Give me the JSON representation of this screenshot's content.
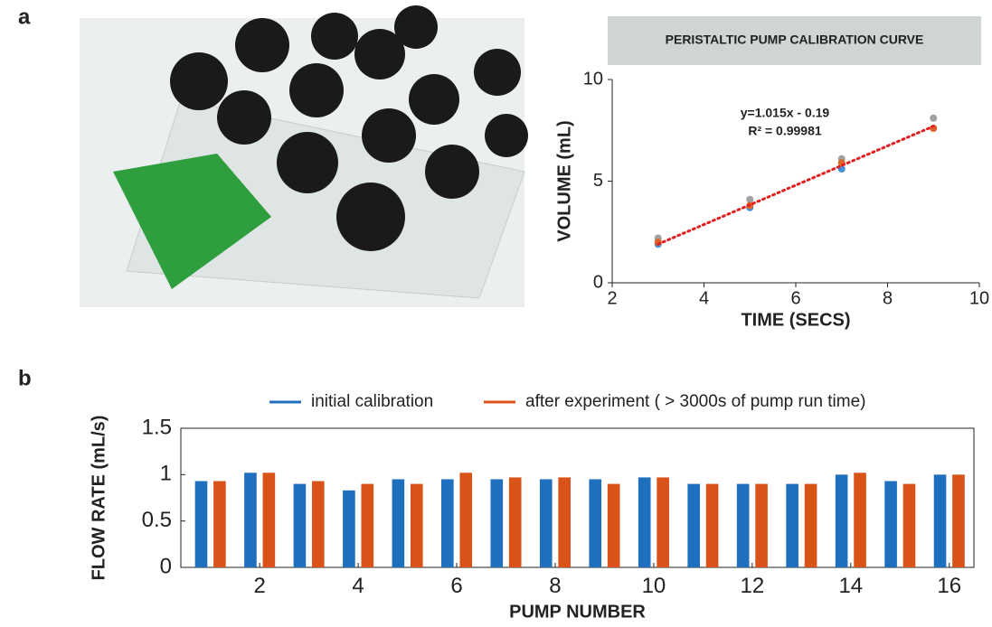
{
  "panel_labels": [
    "a",
    "b"
  ],
  "chart_data": [
    {
      "type": "scatter",
      "title": "PERISTALTIC PUMP CALIBRATION CURVE",
      "x_label": "TIME  (SECS)",
      "y_label": "VOLUME (mL)",
      "annotations": [
        "y=1.015x - 0.19",
        "R² = 0.99981"
      ],
      "xlim": [
        2,
        10
      ],
      "xticks": [
        2,
        4,
        6,
        8,
        10
      ],
      "ylim": [
        0,
        10
      ],
      "yticks": [
        0,
        5,
        10
      ],
      "series": [
        {
          "color": "#a0a0a0",
          "x": [
            3,
            5,
            7,
            9
          ],
          "values": [
            2.2,
            4.1,
            6.1,
            8.1
          ]
        },
        {
          "color": "#4a90d9",
          "x": [
            3,
            5,
            7,
            9
          ],
          "values": [
            1.9,
            3.7,
            5.6,
            7.6
          ]
        },
        {
          "color": "#e0642a",
          "x": [
            3,
            5,
            7,
            9
          ],
          "values": [
            2.0,
            3.8,
            5.9,
            7.6
          ]
        },
        {
          "color": "#e02020",
          "style": "dotted",
          "x": [
            3,
            9
          ],
          "values": [
            1.9,
            7.7
          ]
        }
      ]
    },
    {
      "type": "bar",
      "x_label": "PUMP NUMBER",
      "y_label": "FLOW RATE (mL/s)",
      "x": [
        1,
        2,
        3,
        4,
        5,
        6,
        7,
        8,
        9,
        10,
        11,
        12,
        13,
        14,
        15,
        16
      ],
      "xlim": [
        0.4,
        16.5
      ],
      "xticks": [
        2,
        4,
        6,
        8,
        10,
        12,
        14,
        16
      ],
      "ylim": [
        0,
        1.5
      ],
      "yticks": [
        0,
        0.5,
        1,
        1.5
      ],
      "legend": "top",
      "series": [
        {
          "name": "initial calibration",
          "color": "#1f6fbf",
          "values": [
            0.93,
            1.02,
            0.9,
            0.83,
            0.95,
            0.95,
            0.95,
            0.95,
            0.95,
            0.97,
            0.9,
            0.9,
            0.9,
            1.0,
            0.93,
            1.0
          ]
        },
        {
          "name": "after experiment ( > 3000s of pump run time)",
          "color": "#d95319",
          "values": [
            0.93,
            1.02,
            0.93,
            0.9,
            0.9,
            1.02,
            0.97,
            0.97,
            0.9,
            0.97,
            0.9,
            0.9,
            0.9,
            1.02,
            0.9,
            1.0
          ]
        }
      ]
    }
  ]
}
